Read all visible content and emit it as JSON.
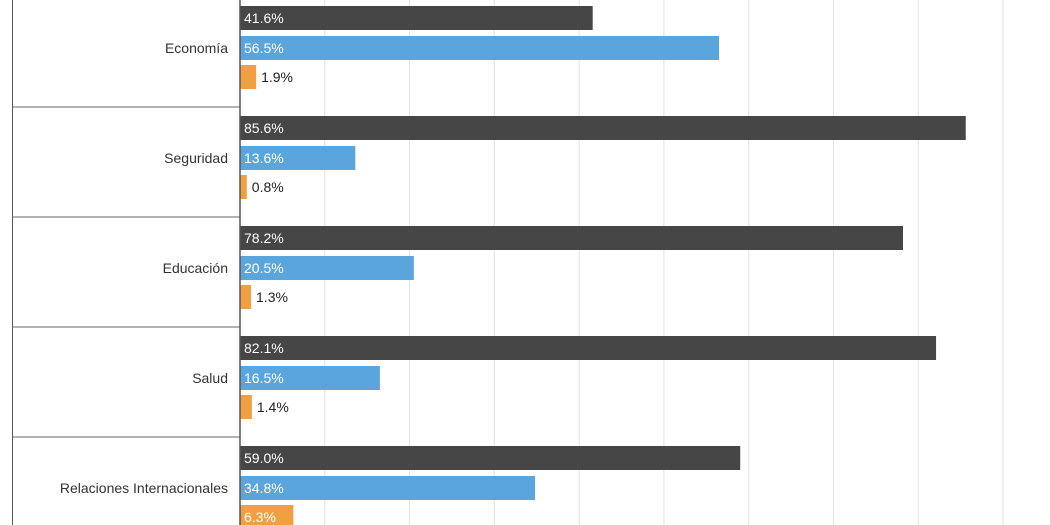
{
  "chart_data": {
    "type": "bar",
    "orientation": "horizontal",
    "categories": [
      "Economía",
      "Seguridad",
      "Educación",
      "Salud",
      "Relaciones Internacionales"
    ],
    "series": [
      {
        "values": [
          41.6,
          85.6,
          78.2,
          82.1,
          59.0
        ],
        "labels": [
          "41.6%",
          "85.6%",
          "78.2%",
          "82.1%",
          "59.0%"
        ],
        "color": "#464646"
      },
      {
        "values": [
          56.5,
          13.6,
          20.5,
          16.5,
          34.8
        ],
        "labels": [
          "56.5%",
          "13.6%",
          "20.5%",
          "16.5%",
          "34.8%"
        ],
        "color": "#5aa5dc"
      },
      {
        "values": [
          1.9,
          0.8,
          1.3,
          1.4,
          6.3
        ],
        "labels": [
          "1.9%",
          "0.8%",
          "1.3%",
          "1.4%",
          "6.3%"
        ],
        "color": "#f0a040"
      }
    ],
    "xlim": [
      0,
      92
    ],
    "grid": true,
    "colors": {
      "grid": "#e2e2e2",
      "separator": "#666666",
      "label": "#333333",
      "inside_label": "#ffffff",
      "outside_label": "#222222"
    }
  }
}
